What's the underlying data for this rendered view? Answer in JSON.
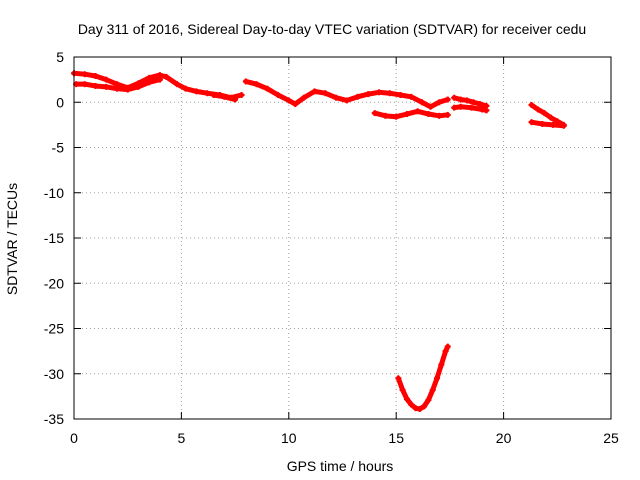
{
  "chart_data": {
    "type": "scatter",
    "title": "Day 311 of 2016, Sidereal Day-to-day VTEC variation (SDTVAR) for receiver cedu",
    "xlabel": "GPS time / hours",
    "ylabel": "SDTVAR / TECUs",
    "xlim": [
      0,
      25
    ],
    "ylim": [
      -35,
      5
    ],
    "xticks": [
      0,
      5,
      10,
      15,
      20,
      25
    ],
    "yticks": [
      5,
      0,
      -5,
      -10,
      -15,
      -20,
      -25,
      -30,
      -35
    ],
    "xtick_labels": [
      "0",
      "5",
      "10",
      "15",
      "20",
      "25"
    ],
    "ytick_labels": [
      "5",
      "0",
      "-5",
      "-10",
      "-15",
      "-20",
      "-25",
      "-30",
      "-35"
    ],
    "grid": true,
    "legend": "none",
    "marker_color": "#ff0000",
    "series": [
      {
        "x": [
          0.0,
          0.5,
          1.0,
          1.5,
          2.0,
          2.5,
          3.0,
          3.5,
          4.0,
          4.3,
          4.8,
          5.2,
          5.7,
          6.2,
          6.8,
          7.3,
          7.8
        ],
        "y": [
          3.2,
          3.1,
          2.9,
          2.5,
          2.0,
          1.6,
          2.1,
          2.7,
          3.0,
          2.8,
          2.0,
          1.5,
          1.2,
          1.0,
          0.8,
          0.5,
          0.8
        ]
      },
      {
        "x": [
          0.1,
          0.5,
          1.0,
          1.5,
          2.0,
          2.5,
          3.0,
          3.5,
          4.0
        ],
        "y": [
          2.0,
          2.0,
          1.8,
          1.7,
          1.5,
          1.4,
          1.7,
          2.2,
          2.5
        ]
      },
      {
        "x": [
          6.5,
          7.0,
          7.5
        ],
        "y": [
          0.8,
          0.6,
          0.3
        ]
      },
      {
        "x": [
          8.0,
          8.5,
          9.0,
          9.5,
          10.0,
          10.3,
          10.7,
          11.2,
          11.7,
          12.2,
          12.7,
          13.2,
          13.7,
          14.2,
          14.7,
          15.2,
          15.7,
          16.2,
          16.6,
          17.0,
          17.4
        ],
        "y": [
          2.3,
          2.0,
          1.5,
          0.8,
          0.2,
          -0.2,
          0.5,
          1.2,
          1.0,
          0.5,
          0.2,
          0.6,
          0.9,
          1.1,
          1.0,
          0.8,
          0.6,
          0.0,
          -0.5,
          0.0,
          0.3
        ]
      },
      {
        "x": [
          14.0,
          14.5,
          15.0,
          15.5,
          16.0,
          16.5,
          17.0,
          17.4
        ],
        "y": [
          -1.2,
          -1.5,
          -1.6,
          -1.3,
          -1.0,
          -1.3,
          -1.5,
          -1.4
        ]
      },
      {
        "x": [
          17.7,
          18.0,
          18.3,
          18.6,
          18.9,
          19.2
        ],
        "y": [
          0.5,
          0.3,
          0.2,
          0.0,
          -0.2,
          -0.4
        ]
      },
      {
        "x": [
          17.7,
          18.0,
          18.5,
          19.0,
          19.2
        ],
        "y": [
          -0.6,
          -0.5,
          -0.6,
          -0.8,
          -0.9
        ]
      },
      {
        "x": [
          21.3,
          21.6,
          21.9,
          22.2,
          22.5,
          22.8
        ],
        "y": [
          -0.3,
          -0.8,
          -1.2,
          -1.7,
          -2.1,
          -2.5
        ]
      },
      {
        "x": [
          21.3,
          21.8,
          22.3,
          22.8
        ],
        "y": [
          -2.2,
          -2.4,
          -2.5,
          -2.6
        ]
      },
      {
        "x": [
          15.1,
          15.3,
          15.5,
          15.7,
          15.9,
          16.1,
          16.3,
          16.5,
          16.7,
          16.9,
          17.1,
          17.3,
          17.4
        ],
        "y": [
          -30.5,
          -31.8,
          -32.8,
          -33.4,
          -33.8,
          -33.9,
          -33.6,
          -32.9,
          -31.8,
          -30.5,
          -29.0,
          -27.5,
          -27.0
        ]
      }
    ]
  }
}
